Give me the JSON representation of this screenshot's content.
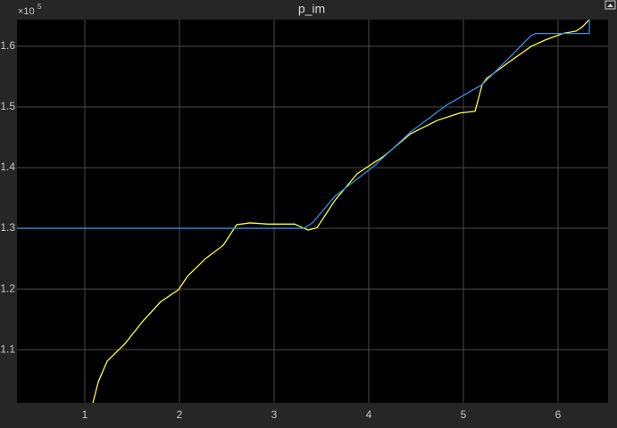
{
  "chart_data": {
    "type": "line",
    "title": "p_im",
    "y_multiplier": {
      "base": "×10",
      "exponent": "5"
    },
    "xlim": [
      0.283,
      6.528
    ],
    "ylim": [
      1.012,
      1.644
    ],
    "xticks": [
      1,
      2,
      3,
      4,
      5,
      6
    ],
    "yticks": [
      1.1,
      1.2,
      1.3,
      1.4,
      1.5,
      1.6
    ],
    "grid": true,
    "series": [
      {
        "color": "#ffff33",
        "x": [
          1.085,
          1.142,
          1.236,
          1.425,
          1.613,
          1.802,
          1.991,
          2.085,
          2.274,
          2.462,
          2.604,
          2.745,
          2.934,
          3.217,
          3.358,
          3.453,
          3.642,
          3.877,
          4.16,
          4.443,
          4.726,
          4.962,
          5.123,
          5.198,
          5.245,
          5.481,
          5.717,
          5.858,
          6.047,
          6.189,
          6.255,
          6.33
        ],
        "values": [
          1.012,
          1.047,
          1.081,
          1.11,
          1.147,
          1.179,
          1.199,
          1.221,
          1.25,
          1.272,
          1.306,
          1.309,
          1.307,
          1.307,
          1.297,
          1.301,
          1.346,
          1.39,
          1.419,
          1.456,
          1.478,
          1.49,
          1.493,
          1.537,
          1.547,
          1.574,
          1.6,
          1.61,
          1.621,
          1.625,
          1.632,
          1.644
        ]
      },
      {
        "color": "#2e8ff0",
        "x": [
          0.283,
          3.311,
          3.406,
          3.642,
          4.066,
          4.443,
          4.821,
          5.198,
          5.387,
          5.717,
          5.764,
          6.33,
          6.33
        ],
        "values": [
          1.3,
          1.3,
          1.309,
          1.353,
          1.404,
          1.459,
          1.503,
          1.537,
          1.566,
          1.618,
          1.621,
          1.621,
          1.644
        ]
      }
    ]
  }
}
